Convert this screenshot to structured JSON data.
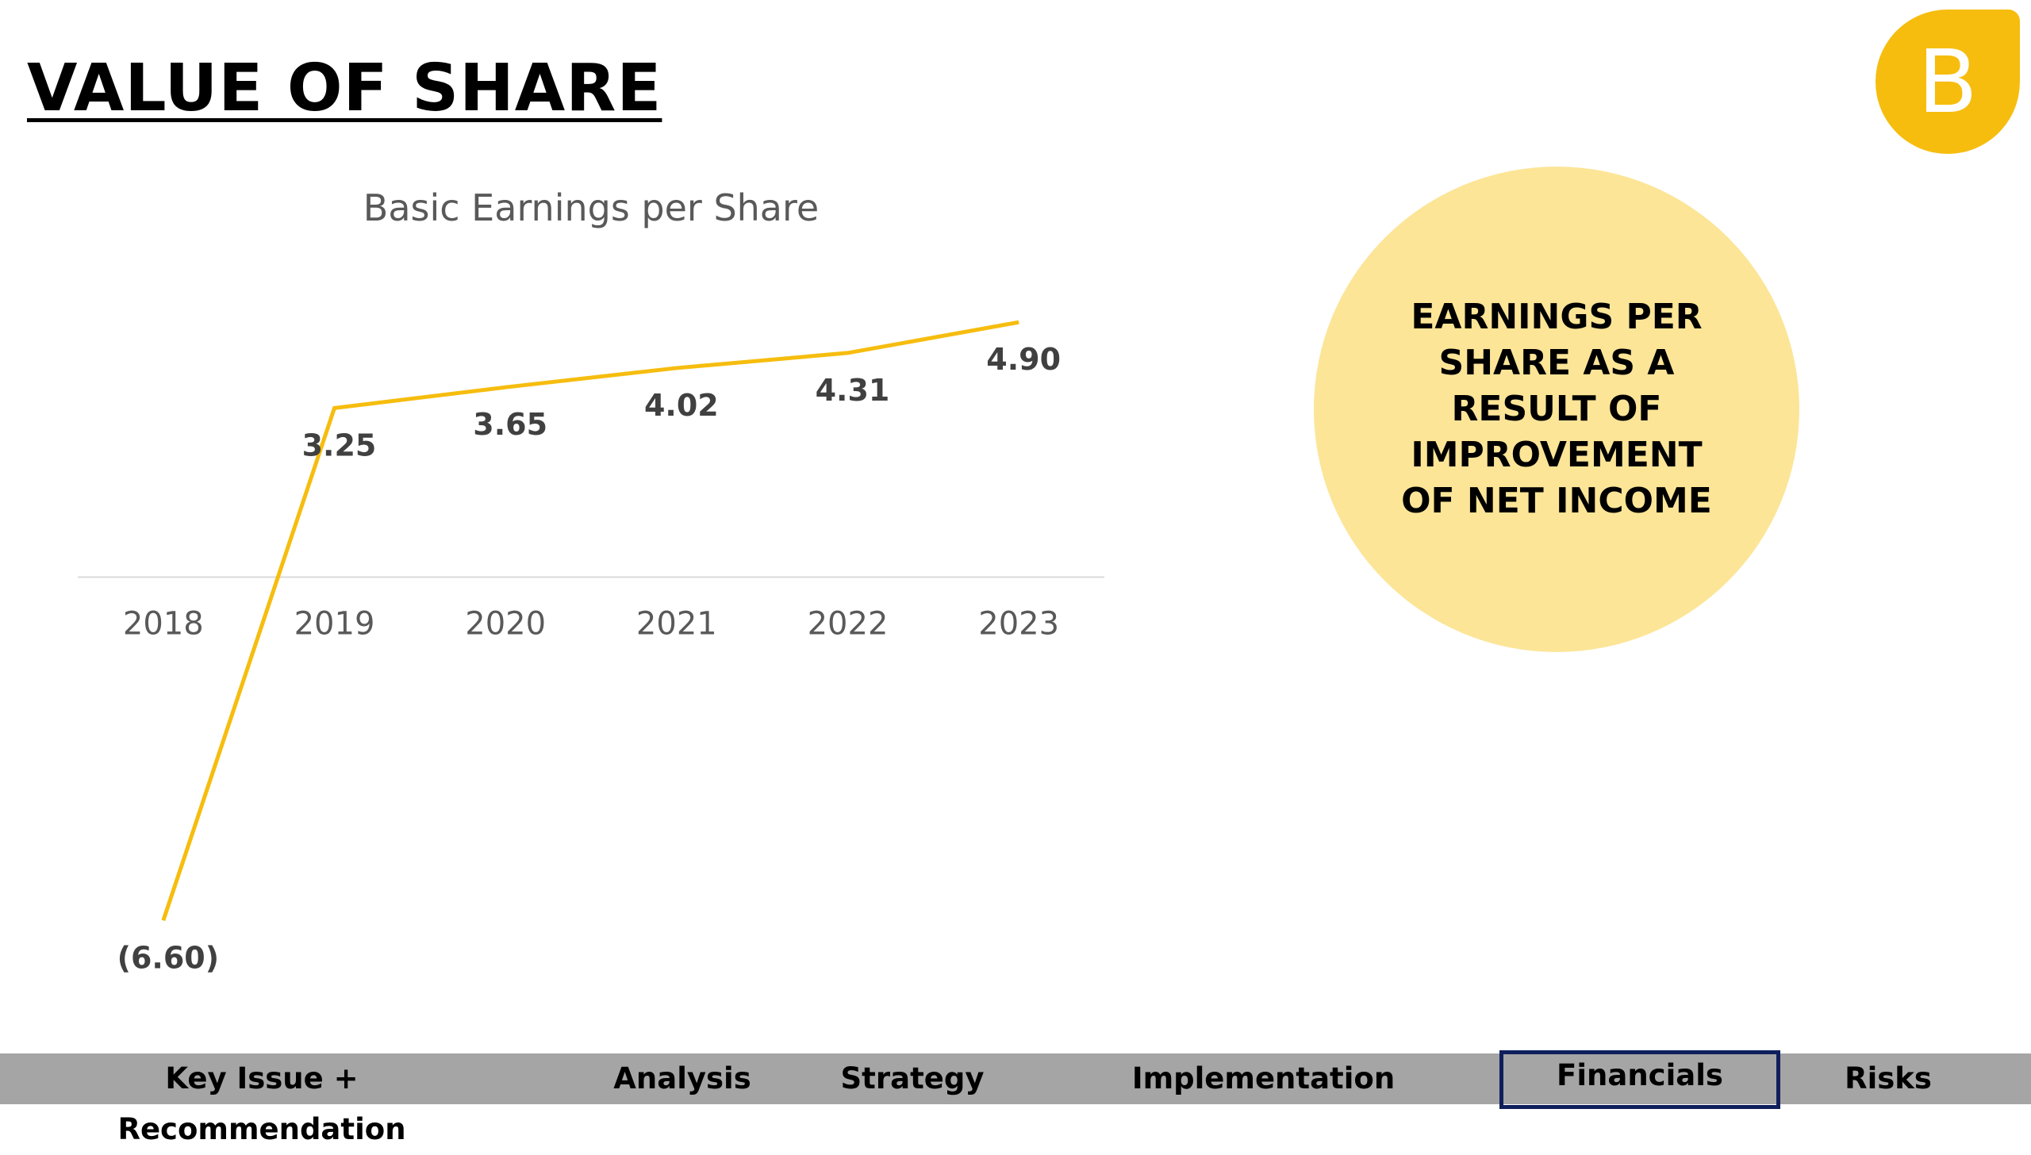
{
  "page": {
    "title": "VALUE OF SHARE",
    "logo_letter": "B",
    "accent_color": "#f6bd0f",
    "callout_color": "#fce597"
  },
  "callout": {
    "text": "EARNINGS PER SHARE AS A RESULT OF IMPROVEMENT OF NET INCOME"
  },
  "nav": {
    "items": [
      {
        "label": "Key Issue + Recommendation",
        "active": false
      },
      {
        "label": "Analysis",
        "active": false
      },
      {
        "label": "Strategy",
        "active": false
      },
      {
        "label": "Implementation",
        "active": false
      },
      {
        "label": "Financials",
        "active": true
      },
      {
        "label": "Risks",
        "active": false
      }
    ],
    "active_border_color": "#0f1f5c",
    "bar_color": "#a5a5a5"
  },
  "chart_data": {
    "type": "line",
    "title": "Basic Earnings per Share",
    "xlabel": "",
    "ylabel": "",
    "categories": [
      "2018",
      "2019",
      "2020",
      "2021",
      "2022",
      "2023"
    ],
    "series": [
      {
        "values": [
          -6.6,
          3.25,
          3.65,
          4.02,
          4.31,
          4.9
        ],
        "data_labels": [
          "(6.60)",
          "3.25",
          "3.65",
          "4.02",
          "4.31",
          "4.90"
        ],
        "color": "#f6bd0f"
      }
    ],
    "ylim": [
      -6.9,
      5.3
    ],
    "grid": false,
    "legend": "none"
  }
}
